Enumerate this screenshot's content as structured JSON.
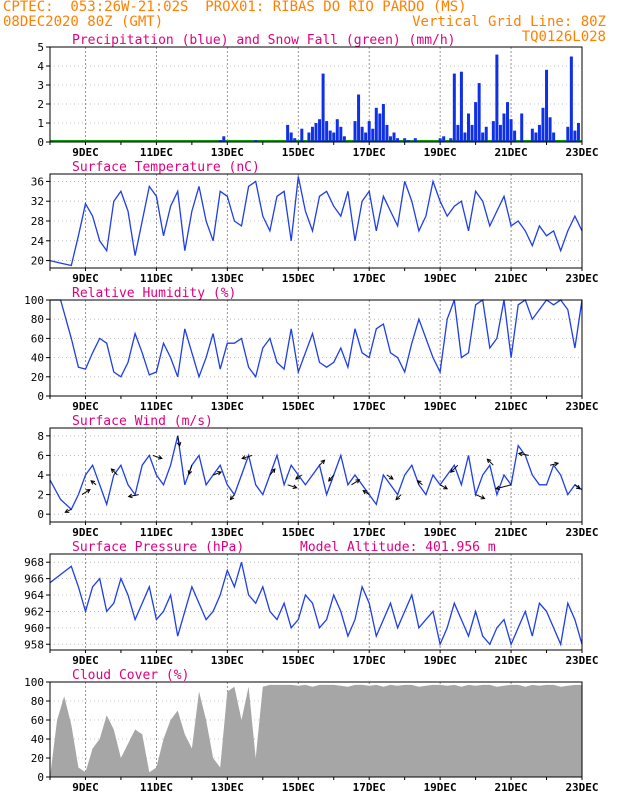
{
  "header": {
    "line1_left": "CPTEC:  053:26W-21:02S  PROX01: RIBAS DO RIO PARDO (MS)",
    "line2_left": "08DEC2020 80Z (GMT)",
    "line2_right": "Vertical Grid Line: 80Z",
    "line3_right": "TQ0126L028"
  },
  "colors": {
    "header": "#ff8000",
    "title": "#e0007f",
    "line": "#1f3ee6",
    "bars_blue": "#1030e6",
    "snow_green": "#00a000",
    "cloud_gray": "#a6a6a6",
    "vertical_grid": "#7a7a7a",
    "horizontal_grid": "#b0b0b0"
  },
  "x_axis": {
    "tick_labels": [
      "9DEC",
      "11DEC",
      "13DEC",
      "15DEC",
      "17DEC",
      "19DEC",
      "21DEC",
      "23DEC"
    ],
    "tick_days": [
      9,
      11,
      13,
      15,
      17,
      19,
      21,
      23
    ],
    "start_day": 8.0,
    "end_day": 23.0
  },
  "chart_data": [
    {
      "id": "precip",
      "type": "bar",
      "title": "Precipitation (blue) and Snow Fall (green) (mm/h)",
      "ylim": [
        0,
        5
      ],
      "yticks": [
        0,
        1,
        2,
        3,
        4,
        5
      ],
      "grid": true,
      "series": [
        {
          "x": [
            12.8,
            12.9,
            13.8,
            14.7,
            14.8,
            14.9,
            15.1,
            15.3,
            15.4,
            15.5,
            15.6,
            15.7,
            15.8,
            15.9,
            16.0,
            16.1,
            16.2,
            16.3,
            16.6,
            16.7,
            16.8,
            16.9,
            17.0,
            17.1,
            17.2,
            17.3,
            17.4,
            17.5,
            17.6,
            17.7,
            17.8,
            18.0,
            18.1,
            18.3,
            19.0,
            19.1,
            19.3,
            19.4,
            19.5,
            19.6,
            19.7,
            19.8,
            19.9,
            20.0,
            20.1,
            20.2,
            20.3,
            20.5,
            20.6,
            20.7,
            20.8,
            20.9,
            21.0,
            21.1,
            21.3,
            21.6,
            21.7,
            21.8,
            21.9,
            22.0,
            22.1,
            22.2,
            22.6,
            22.7,
            22.8,
            22.9
          ],
          "values": [
            0.1,
            0.3,
            0.1,
            0.9,
            0.5,
            0.2,
            0.7,
            0.5,
            0.8,
            1.0,
            1.2,
            3.6,
            1.1,
            0.6,
            0.5,
            1.2,
            0.8,
            0.3,
            1.1,
            2.5,
            0.8,
            0.5,
            1.1,
            0.7,
            1.8,
            1.5,
            2.0,
            0.9,
            0.3,
            0.5,
            0.2,
            0.2,
            0.1,
            0.2,
            0.2,
            0.3,
            0.2,
            3.6,
            0.9,
            3.7,
            0.5,
            1.5,
            0.9,
            2.1,
            3.1,
            0.5,
            0.8,
            1.1,
            4.6,
            0.9,
            1.5,
            2.1,
            1.2,
            0.6,
            1.5,
            0.7,
            0.5,
            0.9,
            1.8,
            3.8,
            1.3,
            0.5,
            0.8,
            4.5,
            0.6,
            1.0
          ]
        }
      ]
    },
    {
      "id": "temp",
      "type": "line",
      "title": "Surface Temperature (nC)",
      "ylim": [
        18.5,
        37.5
      ],
      "yticks": [
        20,
        24,
        28,
        32,
        36
      ],
      "grid": true,
      "x": [
        8.0,
        8.3,
        8.6,
        8.8,
        9.0,
        9.2,
        9.4,
        9.6,
        9.8,
        10.0,
        10.2,
        10.4,
        10.6,
        10.8,
        11.0,
        11.2,
        11.4,
        11.6,
        11.8,
        12.0,
        12.2,
        12.4,
        12.6,
        12.8,
        13.0,
        13.2,
        13.4,
        13.6,
        13.8,
        14.0,
        14.2,
        14.4,
        14.6,
        14.8,
        15.0,
        15.2,
        15.4,
        15.6,
        15.8,
        16.0,
        16.2,
        16.4,
        16.6,
        16.8,
        17.0,
        17.2,
        17.4,
        17.6,
        17.8,
        18.0,
        18.2,
        18.4,
        18.6,
        18.8,
        19.0,
        19.2,
        19.4,
        19.6,
        19.8,
        20.0,
        20.2,
        20.4,
        20.6,
        20.8,
        21.0,
        21.2,
        21.4,
        21.6,
        21.8,
        22.0,
        22.2,
        22.4,
        22.6,
        22.8,
        23.0
      ],
      "values": [
        20,
        19.5,
        19,
        25,
        31.5,
        29,
        24,
        22,
        32,
        34,
        30,
        21,
        28,
        35,
        33,
        25,
        31,
        34,
        22,
        30,
        35,
        28,
        24,
        34,
        33,
        28,
        27,
        35,
        36,
        29,
        26,
        33,
        34,
        24,
        37,
        30,
        26,
        33,
        34,
        31,
        29,
        34,
        24,
        32,
        34,
        26,
        33,
        30,
        27,
        36,
        32,
        26,
        29,
        36,
        32,
        29,
        31,
        32,
        26,
        34,
        32,
        27,
        30,
        33,
        27,
        28,
        26,
        23,
        27,
        25,
        26,
        22,
        26,
        29,
        26
      ]
    },
    {
      "id": "rh",
      "type": "line",
      "title": "Relative Humidity (%)",
      "ylim": [
        0,
        100
      ],
      "yticks": [
        0,
        20,
        40,
        60,
        80,
        100
      ],
      "grid": true,
      "x": [
        8.0,
        8.3,
        8.6,
        8.8,
        9.0,
        9.2,
        9.4,
        9.6,
        9.8,
        10.0,
        10.2,
        10.4,
        10.6,
        10.8,
        11.0,
        11.2,
        11.4,
        11.6,
        11.8,
        12.0,
        12.2,
        12.4,
        12.6,
        12.8,
        13.0,
        13.2,
        13.4,
        13.6,
        13.8,
        14.0,
        14.2,
        14.4,
        14.6,
        14.8,
        15.0,
        15.2,
        15.4,
        15.6,
        15.8,
        16.0,
        16.2,
        16.4,
        16.6,
        16.8,
        17.0,
        17.2,
        17.4,
        17.6,
        17.8,
        18.0,
        18.2,
        18.4,
        18.6,
        18.8,
        19.0,
        19.2,
        19.4,
        19.6,
        19.8,
        20.0,
        20.2,
        20.4,
        20.6,
        20.8,
        21.0,
        21.2,
        21.4,
        21.6,
        21.8,
        22.0,
        22.2,
        22.4,
        22.6,
        22.8,
        23.0
      ],
      "values": [
        100,
        100,
        60,
        30,
        28,
        45,
        60,
        55,
        25,
        20,
        35,
        65,
        45,
        22,
        25,
        55,
        40,
        20,
        70,
        45,
        20,
        40,
        65,
        28,
        55,
        55,
        60,
        30,
        20,
        50,
        60,
        35,
        28,
        70,
        25,
        45,
        65,
        35,
        30,
        35,
        50,
        30,
        70,
        45,
        40,
        70,
        75,
        45,
        40,
        25,
        55,
        80,
        60,
        40,
        25,
        80,
        100,
        40,
        45,
        95,
        100,
        50,
        60,
        100,
        40,
        95,
        100,
        80,
        90,
        100,
        95,
        100,
        90,
        50,
        100
      ]
    },
    {
      "id": "wind",
      "type": "line",
      "title": "Surface Wind (m/s)",
      "ylim": [
        -0.8,
        8.8
      ],
      "yticks": [
        0,
        2,
        4,
        6,
        8
      ],
      "grid": true,
      "x": [
        8.0,
        8.3,
        8.6,
        8.8,
        9.0,
        9.2,
        9.4,
        9.6,
        9.8,
        10.0,
        10.2,
        10.4,
        10.6,
        10.8,
        11.0,
        11.2,
        11.4,
        11.6,
        11.8,
        12.0,
        12.2,
        12.4,
        12.6,
        12.8,
        13.0,
        13.2,
        13.4,
        13.6,
        13.8,
        14.0,
        14.2,
        14.4,
        14.6,
        14.8,
        15.0,
        15.2,
        15.4,
        15.6,
        15.8,
        16.0,
        16.2,
        16.4,
        16.6,
        16.8,
        17.0,
        17.2,
        17.4,
        17.6,
        17.8,
        18.0,
        18.2,
        18.4,
        18.6,
        18.8,
        19.0,
        19.2,
        19.4,
        19.6,
        19.8,
        20.0,
        20.2,
        20.4,
        20.6,
        20.8,
        21.0,
        21.2,
        21.4,
        21.6,
        21.8,
        22.0,
        22.2,
        22.4,
        22.6,
        22.8,
        23.0
      ],
      "values": [
        3.5,
        1.5,
        0.5,
        2,
        4,
        5,
        3,
        1,
        4,
        5,
        3,
        2,
        5,
        6,
        4,
        3,
        5,
        8,
        3,
        5,
        6,
        3,
        4,
        5,
        3,
        2,
        4,
        6,
        3,
        2,
        4,
        6,
        3,
        5,
        4,
        3,
        4,
        5,
        2,
        4,
        6,
        3,
        4,
        3,
        2,
        1,
        4,
        3,
        2,
        4,
        5,
        3,
        2,
        4,
        3,
        4,
        5,
        3,
        6,
        2,
        4,
        5,
        2,
        4,
        3,
        7,
        6,
        4,
        3,
        3,
        5,
        4,
        2,
        3,
        2.5
      ],
      "arrows": [
        {
          "day": 8.6,
          "dx": -6,
          "dy": 3
        },
        {
          "day": 8.9,
          "dx": 8,
          "dy": -5
        },
        {
          "day": 9.3,
          "dx": -5,
          "dy": -4
        },
        {
          "day": 9.9,
          "dx": -6,
          "dy": -6
        },
        {
          "day": 10.5,
          "dx": -10,
          "dy": 2
        },
        {
          "day": 10.9,
          "dx": 9,
          "dy": 3
        },
        {
          "day": 11.6,
          "dx": 2,
          "dy": 10
        },
        {
          "day": 12.0,
          "dx": -3,
          "dy": 9
        },
        {
          "day": 12.6,
          "dx": 8,
          "dy": -3
        },
        {
          "day": 13.2,
          "dx": -4,
          "dy": 5
        },
        {
          "day": 13.7,
          "dx": -10,
          "dy": 3
        },
        {
          "day": 14.2,
          "dx": 5,
          "dy": -6
        },
        {
          "day": 14.7,
          "dx": 9,
          "dy": 3
        },
        {
          "day": 15.1,
          "dx": -6,
          "dy": 4
        },
        {
          "day": 15.6,
          "dx": 5,
          "dy": -5
        },
        {
          "day": 16.0,
          "dx": -5,
          "dy": 6
        },
        {
          "day": 16.5,
          "dx": 8,
          "dy": -5
        },
        {
          "day": 17.0,
          "dx": -6,
          "dy": -4
        },
        {
          "day": 17.5,
          "dx": 6,
          "dy": 4
        },
        {
          "day": 17.9,
          "dx": -5,
          "dy": 5
        },
        {
          "day": 18.5,
          "dx": -5,
          "dy": -4
        },
        {
          "day": 19.0,
          "dx": 7,
          "dy": 4
        },
        {
          "day": 19.5,
          "dx": -7,
          "dy": 7
        },
        {
          "day": 20.0,
          "dx": 9,
          "dy": 4
        },
        {
          "day": 20.5,
          "dx": -6,
          "dy": -6
        },
        {
          "day": 21.0,
          "dx": -15,
          "dy": 4
        },
        {
          "day": 21.5,
          "dx": -10,
          "dy": -2
        },
        {
          "day": 22.1,
          "dx": 8,
          "dy": -2
        },
        {
          "day": 22.8,
          "dx": 5,
          "dy": 4
        }
      ]
    },
    {
      "id": "pres",
      "type": "line",
      "title": "Surface Pressure (hPa)",
      "annotation": "Model Altitude: 401.956 m",
      "ylim": [
        957.3,
        969
      ],
      "yticks": [
        958,
        960,
        962,
        964,
        966,
        968
      ],
      "grid": true,
      "x": [
        8.0,
        8.3,
        8.6,
        8.8,
        9.0,
        9.2,
        9.4,
        9.6,
        9.8,
        10.0,
        10.2,
        10.4,
        10.6,
        10.8,
        11.0,
        11.2,
        11.4,
        11.6,
        11.8,
        12.0,
        12.2,
        12.4,
        12.6,
        12.8,
        13.0,
        13.2,
        13.4,
        13.6,
        13.8,
        14.0,
        14.2,
        14.4,
        14.6,
        14.8,
        15.0,
        15.2,
        15.4,
        15.6,
        15.8,
        16.0,
        16.2,
        16.4,
        16.6,
        16.8,
        17.0,
        17.2,
        17.4,
        17.6,
        17.8,
        18.0,
        18.2,
        18.4,
        18.6,
        18.8,
        19.0,
        19.2,
        19.4,
        19.6,
        19.8,
        20.0,
        20.2,
        20.4,
        20.6,
        20.8,
        21.0,
        21.2,
        21.4,
        21.6,
        21.8,
        22.0,
        22.2,
        22.4,
        22.6,
        22.8,
        23.0
      ],
      "values": [
        965.5,
        966.5,
        967.5,
        965,
        962,
        965,
        966,
        962,
        963,
        966,
        964,
        961,
        963,
        965,
        961,
        962,
        964,
        959,
        962,
        965,
        963,
        961,
        962,
        964,
        967,
        965,
        968,
        964,
        963,
        965,
        962,
        961,
        963,
        960,
        961,
        964,
        963,
        960,
        961,
        964,
        962,
        959,
        961,
        965,
        963,
        959,
        961,
        963,
        960,
        962,
        964,
        960,
        961,
        962,
        958,
        960,
        963,
        961,
        959,
        962,
        959,
        958,
        960,
        961,
        958,
        960,
        962,
        959,
        963,
        962,
        960,
        958,
        963,
        961,
        958
      ]
    },
    {
      "id": "cloud",
      "type": "area",
      "title": "Cloud Cover (%)",
      "ylim": [
        0,
        100
      ],
      "yticks": [
        0,
        20,
        40,
        60,
        80,
        100
      ],
      "grid": true,
      "x": [
        8.0,
        8.2,
        8.4,
        8.6,
        8.8,
        9.0,
        9.2,
        9.4,
        9.6,
        9.8,
        10.0,
        10.2,
        10.4,
        10.6,
        10.8,
        11.0,
        11.2,
        11.4,
        11.6,
        11.8,
        12.0,
        12.2,
        12.4,
        12.6,
        12.8,
        13.0,
        13.2,
        13.4,
        13.6,
        13.8,
        14.0,
        14.2,
        14.4,
        14.6,
        14.8,
        15.0,
        15.2,
        15.4,
        15.6,
        15.8,
        16.0,
        16.2,
        16.4,
        16.6,
        16.8,
        17.0,
        17.2,
        17.4,
        17.6,
        17.8,
        18.0,
        18.2,
        18.4,
        18.6,
        18.8,
        19.0,
        19.2,
        19.4,
        19.6,
        19.8,
        20.0,
        20.2,
        20.4,
        20.6,
        20.8,
        21.0,
        21.2,
        21.4,
        21.6,
        21.8,
        22.0,
        22.2,
        22.4,
        22.6,
        22.8,
        23.0
      ],
      "values": [
        0,
        60,
        85,
        55,
        10,
        5,
        30,
        40,
        65,
        50,
        20,
        35,
        50,
        45,
        5,
        10,
        40,
        60,
        70,
        45,
        30,
        90,
        60,
        20,
        10,
        90,
        95,
        60,
        95,
        20,
        95,
        97,
        97,
        97,
        97,
        96,
        97,
        95,
        97,
        97,
        97,
        96,
        95,
        97,
        97,
        96,
        97,
        95,
        97,
        96,
        97,
        97,
        95,
        96,
        97,
        97,
        96,
        97,
        95,
        97,
        96,
        97,
        97,
        95,
        96,
        97,
        97,
        95,
        97,
        96,
        97,
        97,
        95,
        96,
        97,
        97
      ]
    }
  ]
}
